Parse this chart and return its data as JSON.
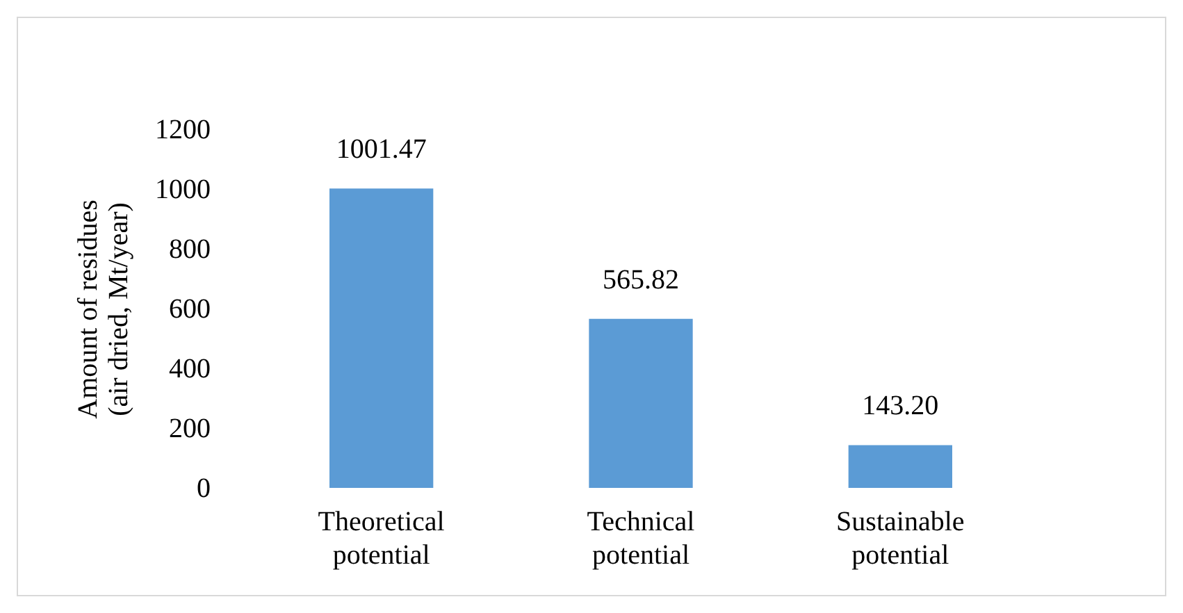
{
  "chart_data": {
    "type": "bar",
    "ylabel": "Amount of residues\n(air dried, Mt/year)",
    "categories": [
      "Theoretical potential",
      "Technical potential",
      "Sustainable potential"
    ],
    "values": [
      1001.47,
      565.82,
      143.2
    ],
    "value_labels": [
      "1001.47",
      "565.82",
      "143.20"
    ],
    "color": "#5b9bd5",
    "ylim": [
      0,
      1200
    ],
    "yticks": [
      0,
      200,
      400,
      600,
      800,
      1000,
      1200
    ],
    "grid": false
  }
}
